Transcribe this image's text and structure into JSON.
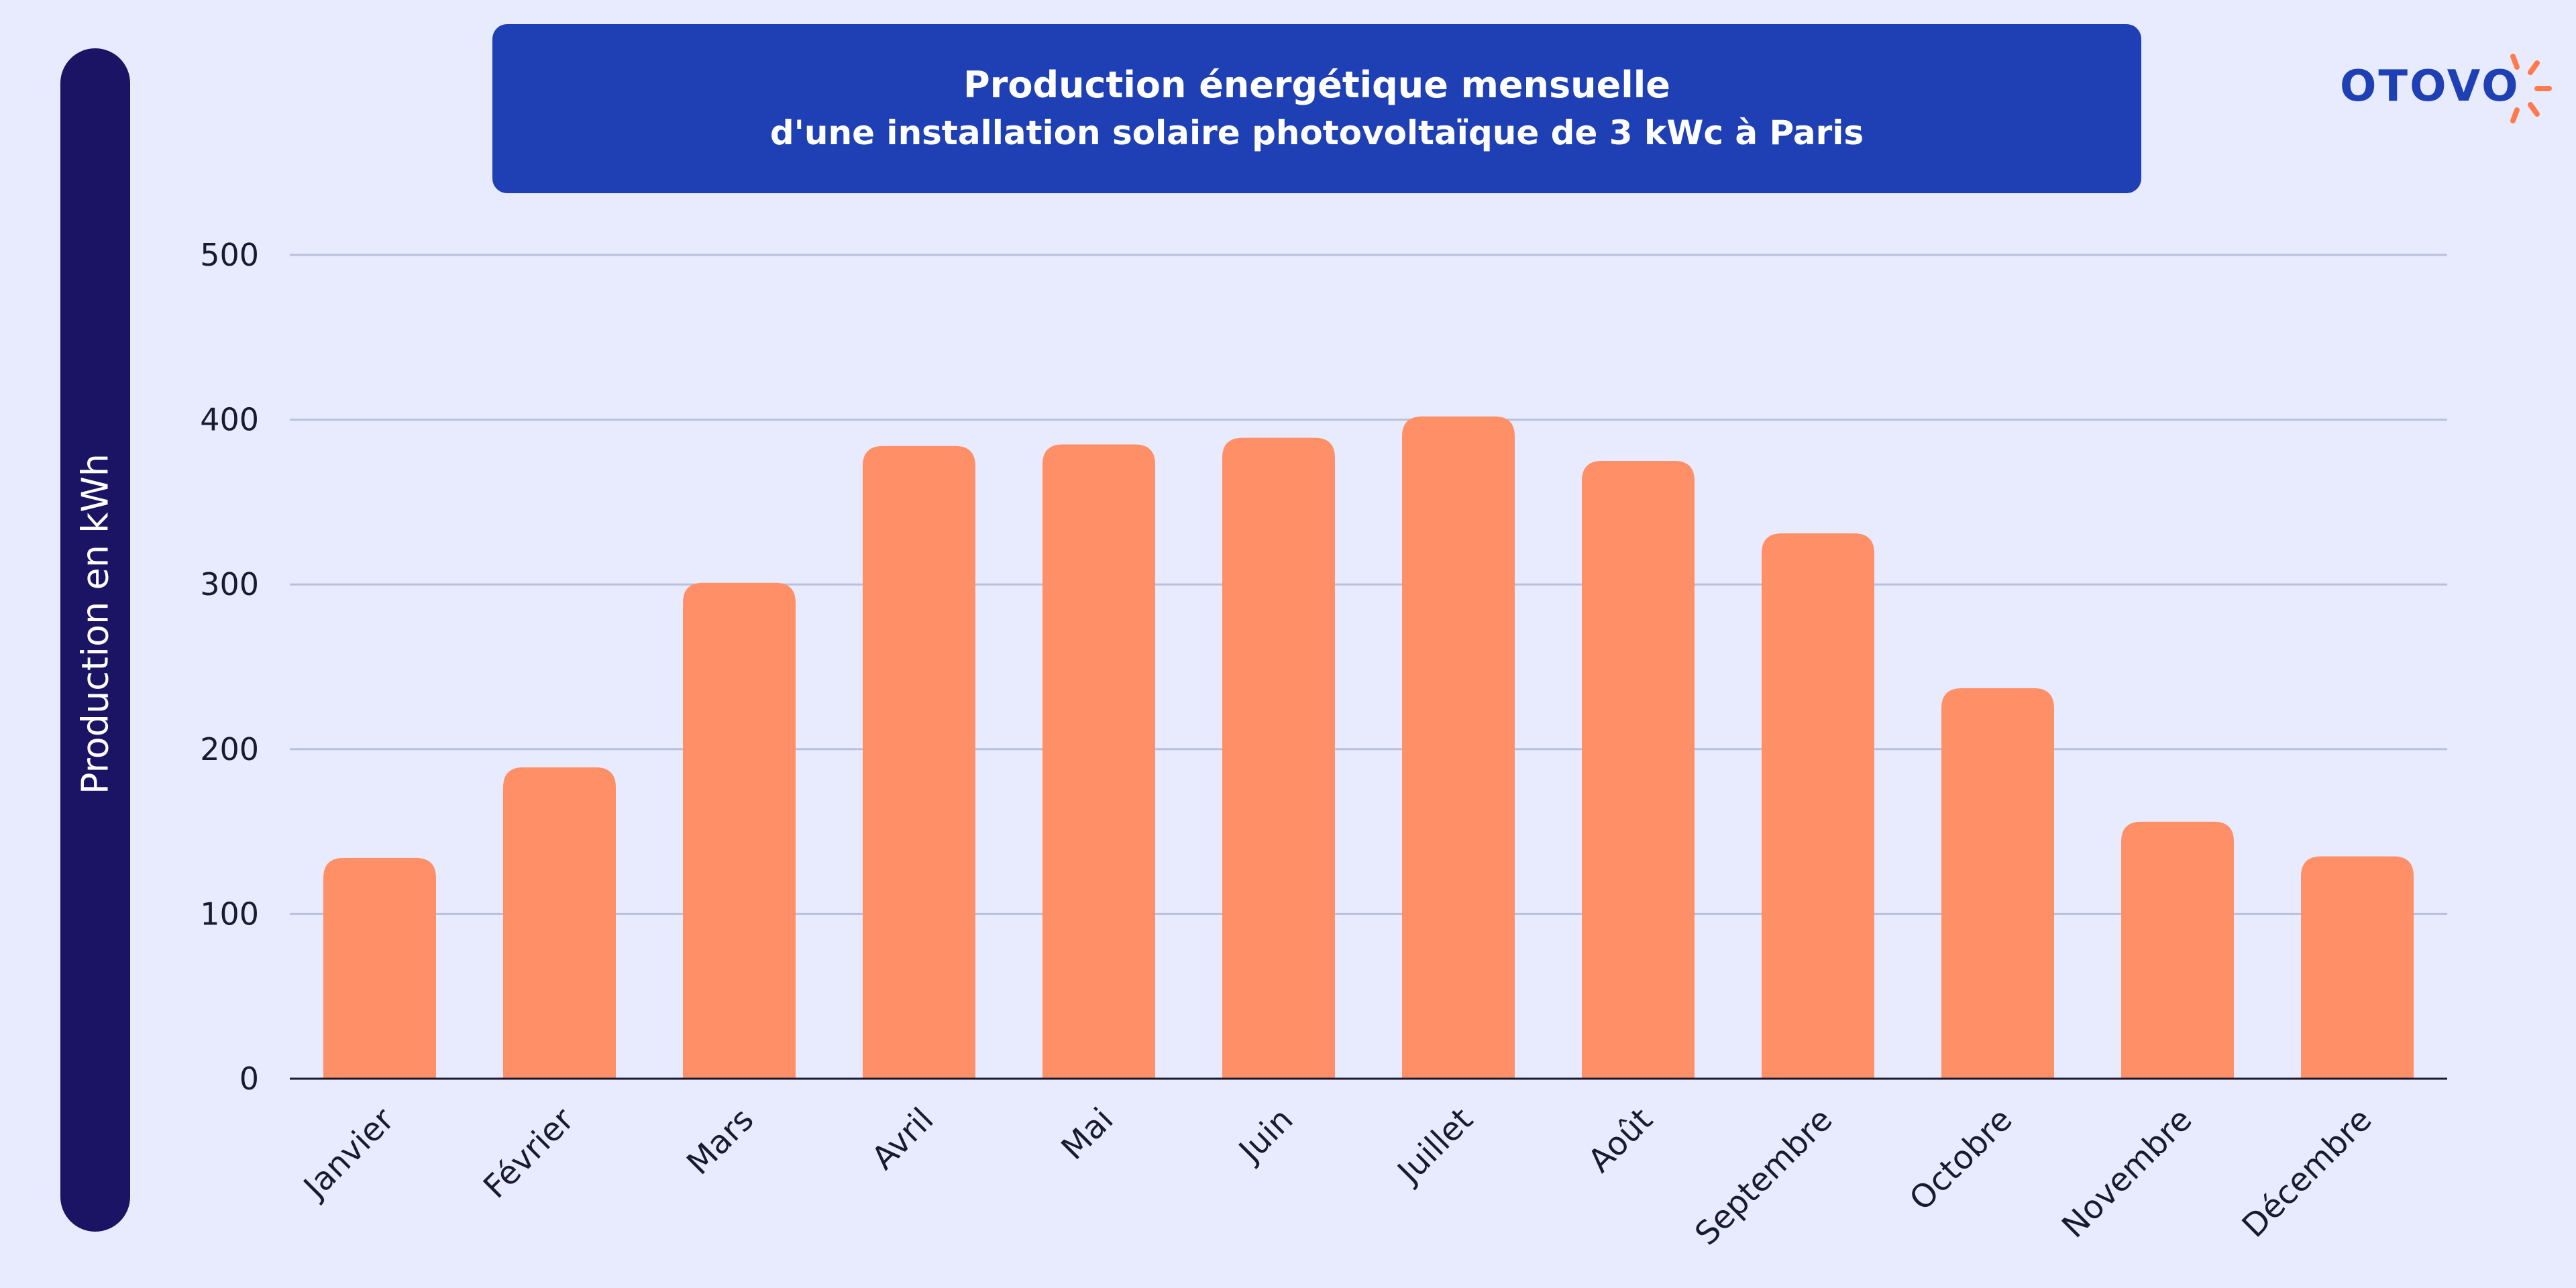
{
  "chart_data": {
    "type": "bar",
    "title": "Production énergétique mensuelle",
    "subtitle": "d'une installation solaire photovoltaïque de 3 kWc à Paris",
    "xlabel": "",
    "ylabel": "Production en kWh",
    "categories": [
      "Janvier",
      "Février",
      "Mars",
      "Avril",
      "Mai",
      "Juin",
      "Juillet",
      "Août",
      "Septembre",
      "Octobre",
      "Novembre",
      "Décembre"
    ],
    "values": [
      134,
      189,
      301,
      384,
      385,
      389,
      402,
      375,
      331,
      237,
      156,
      135
    ],
    "ylim": [
      0,
      500
    ],
    "yticks": [
      0,
      100,
      200,
      300,
      400,
      500
    ],
    "grid": true,
    "colors": {
      "bar": "#ff8f66",
      "grid": "#b9bfdc",
      "axis": "#1a1a2e"
    }
  },
  "brand": {
    "logo_text": "OTOVO",
    "logo_color": "#1e40b4",
    "sun_color": "#ff7a4d"
  }
}
